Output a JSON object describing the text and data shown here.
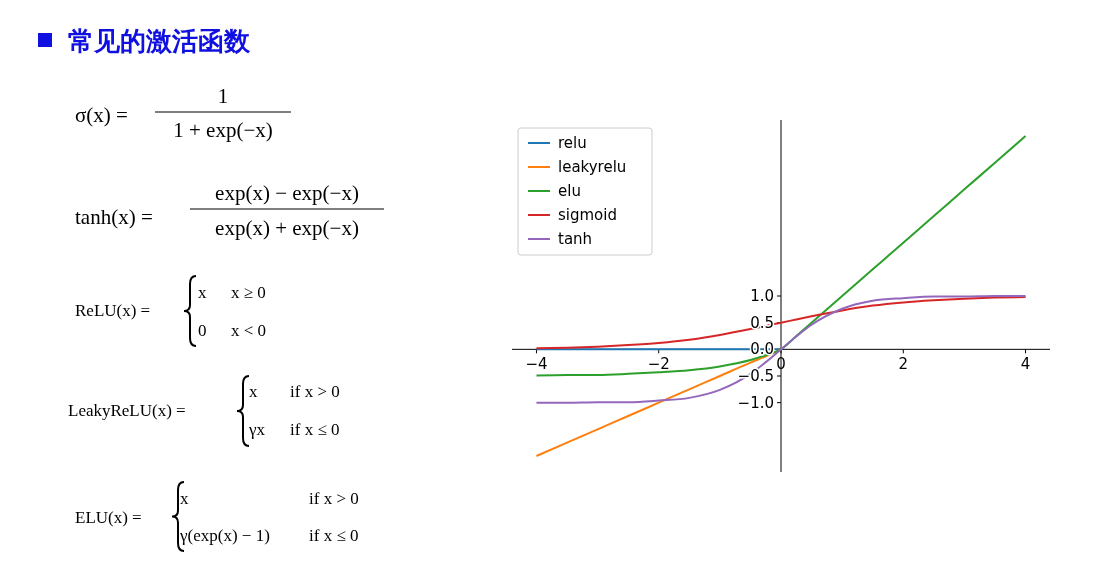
{
  "chart_data": {
    "type": "line",
    "title": "常见的激活函数",
    "x": [
      -4,
      -3.5,
      -3,
      -2.5,
      -2,
      -1.5,
      -1,
      -0.5,
      -0.25,
      0,
      0.25,
      0.5,
      1,
      1.5,
      2,
      2.5,
      3,
      3.5,
      4
    ],
    "series": [
      {
        "name": "relu",
        "color": "#1f77b4",
        "values": [
          0,
          0,
          0,
          0,
          0,
          0,
          0,
          0,
          0,
          0,
          null,
          null,
          null,
          null,
          null,
          null,
          null,
          null,
          null
        ]
      },
      {
        "name": "leakyrelu",
        "color": "#ff7f0e",
        "values": [
          -2,
          -1.75,
          -1.5,
          -1.25,
          -1,
          -0.75,
          -0.5,
          -0.25,
          -0.13,
          0,
          null,
          null,
          null,
          null,
          null,
          null,
          null,
          null,
          null
        ]
      },
      {
        "name": "elu",
        "color": "#2ca02c",
        "values": [
          -0.49,
          -0.48,
          -0.48,
          -0.46,
          -0.43,
          -0.39,
          -0.32,
          -0.2,
          -0.11,
          0,
          0.25,
          0.5,
          1,
          1.5,
          2,
          2.5,
          3,
          3.5,
          4
        ]
      },
      {
        "name": "sigmoid",
        "color": "#d62728",
        "values": [
          0.02,
          0.03,
          0.05,
          0.08,
          0.12,
          0.18,
          0.27,
          0.38,
          0.44,
          0.5,
          0.56,
          0.62,
          0.73,
          0.82,
          0.88,
          0.92,
          0.95,
          0.97,
          0.98
        ]
      },
      {
        "name": "tanh",
        "color": "#9467bd",
        "values": [
          -1,
          -1,
          -0.99,
          -0.99,
          -0.96,
          -0.91,
          -0.76,
          -0.46,
          -0.24,
          0,
          0.24,
          0.46,
          0.76,
          0.91,
          0.96,
          0.99,
          0.99,
          1,
          1
        ]
      }
    ],
    "xlim": [
      -4.4,
      4.4
    ],
    "ylim": [
      -2.3,
      4.3
    ],
    "xticks": [
      {
        "value": -4,
        "label": "−4"
      },
      {
        "value": -2,
        "label": "−2"
      },
      0,
      2,
      4
    ],
    "yticks": [
      {
        "value": -1,
        "label": "−1.0"
      },
      {
        "value": -0.5,
        "label": "−0.5"
      },
      {
        "value": 0,
        "label": "0.0"
      },
      {
        "value": 0.5,
        "label": "0.5"
      },
      {
        "value": 1,
        "label": "1.0"
      }
    ],
    "legend": "top left",
    "grid": false,
    "line_style": "solid",
    "marker": "none",
    "annotations": [
      "σ(x) =",
      "1",
      "1 + exp(−x)",
      "tanh(x) =",
      "exp(x) − exp(−x)",
      "exp(x) + exp(−x)",
      "ReLU(x) =",
      "x",
      "x ≥ 0",
      "0",
      "x < 0",
      "LeakyReLU(x) =",
      "x",
      "if x > 0",
      "γx",
      "if x ≤ 0",
      "ELU(x) =",
      "x",
      "if x > 0",
      "γ(exp(x) − 1)",
      "if x ≤ 0"
    ]
  }
}
